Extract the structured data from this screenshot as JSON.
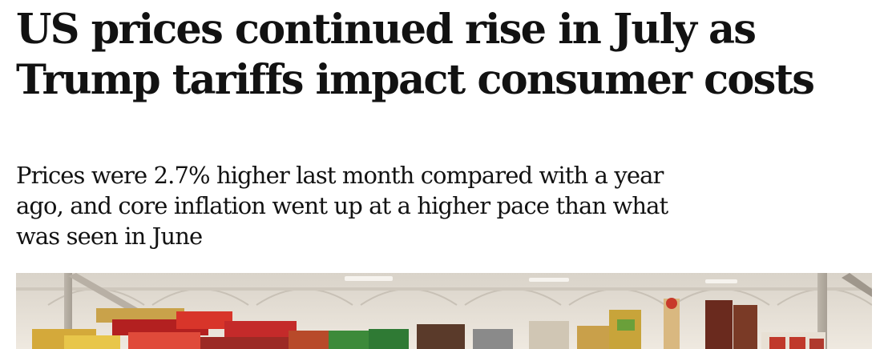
{
  "article": {
    "headline": {
      "line1": "US prices continued rise in July as",
      "line2": "Trump tariffs impact consumer costs"
    },
    "standfirst": {
      "line1": "Prices were 2.7% higher last month compared with a year",
      "line2": "ago, and core inflation went up at a higher pace than what",
      "line3": "was seen in June"
    },
    "hero_image": {
      "subject": "supermarket-shelves-photo"
    }
  }
}
